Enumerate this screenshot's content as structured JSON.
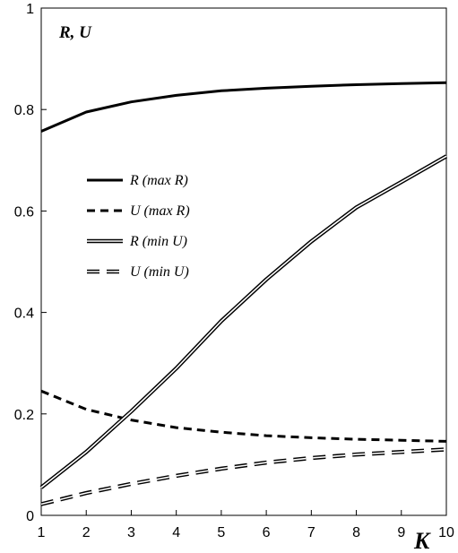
{
  "chart_data": {
    "type": "line",
    "title": "",
    "xlabel": "K",
    "ylabel": "R, U",
    "xlim": [
      1,
      10
    ],
    "ylim": [
      0,
      1
    ],
    "xticks": [
      "1",
      "2",
      "3",
      "4",
      "5",
      "6",
      "7",
      "8",
      "9",
      "10"
    ],
    "yticks": [
      "0",
      "0.2",
      "0.4",
      "0.6",
      "0.8",
      "1"
    ],
    "grid": false,
    "legend_position": "center-left",
    "x": [
      1,
      2,
      3,
      4,
      5,
      6,
      7,
      8,
      9,
      10
    ],
    "series": [
      {
        "name": "R (max R)",
        "style": "solid",
        "values": [
          0.757,
          0.795,
          0.815,
          0.828,
          0.837,
          0.842,
          0.846,
          0.849,
          0.851,
          0.853
        ]
      },
      {
        "name": "U (max R)",
        "style": "dashed",
        "values": [
          0.245,
          0.209,
          0.188,
          0.173,
          0.164,
          0.157,
          0.153,
          0.15,
          0.148,
          0.146
        ]
      },
      {
        "name": "R (min U)",
        "style": "double",
        "values": [
          0.055,
          0.125,
          0.205,
          0.29,
          0.383,
          0.465,
          0.54,
          0.607,
          0.657,
          0.708
        ]
      },
      {
        "name": "U (min U)",
        "style": "double-dashed",
        "values": [
          0.022,
          0.044,
          0.062,
          0.078,
          0.092,
          0.104,
          0.113,
          0.12,
          0.125,
          0.13
        ]
      }
    ]
  }
}
